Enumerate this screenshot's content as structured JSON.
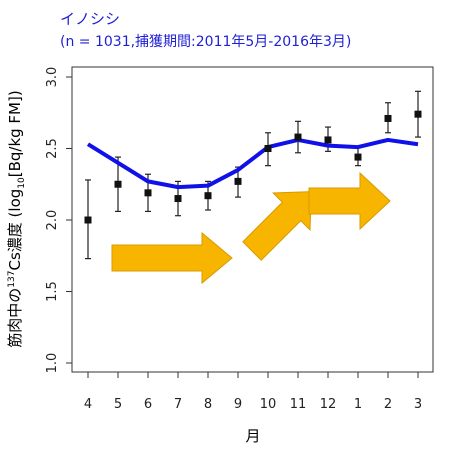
{
  "chart_data": {
    "type": "line",
    "title": "イノシシ",
    "subtitle": "(n = 1031,捕獲期間:2011年5月-2016年3月)",
    "xlabel": "月",
    "ylabel_pre": "筋肉中の",
    "ylabel_sup": "137",
    "ylabel_mid": "Cs濃度  (log",
    "ylabel_sub": "10",
    "ylabel_post": "[Bq/kg FM])",
    "categories": [
      "4",
      "5",
      "6",
      "7",
      "8",
      "9",
      "10",
      "11",
      "12",
      "1",
      "2",
      "3"
    ],
    "ylim": [
      1.0,
      3.0
    ],
    "yticks": [
      "1.0",
      "1.5",
      "2.0",
      "2.5",
      "3.0"
    ],
    "grid": false,
    "series": [
      {
        "kind": "points",
        "values": [
          2.0,
          2.25,
          2.19,
          2.15,
          2.17,
          2.27,
          2.5,
          2.58,
          2.56,
          2.44,
          2.71,
          2.74
        ],
        "err_low": [
          1.73,
          2.06,
          2.06,
          2.03,
          2.07,
          2.16,
          2.38,
          2.47,
          2.48,
          2.38,
          2.61,
          2.58
        ],
        "err_high": [
          2.28,
          2.44,
          2.32,
          2.27,
          2.27,
          2.37,
          2.61,
          2.69,
          2.65,
          2.51,
          2.82,
          2.9
        ]
      },
      {
        "kind": "line",
        "values": [
          2.53,
          2.4,
          2.27,
          2.23,
          2.24,
          2.35,
          2.51,
          2.56,
          2.52,
          2.51,
          2.56,
          2.53
        ]
      }
    ],
    "colors": {
      "title": "#1f1fd6",
      "line": "#1010e8",
      "points": "#111111",
      "arrow": "#f7b500"
    }
  }
}
